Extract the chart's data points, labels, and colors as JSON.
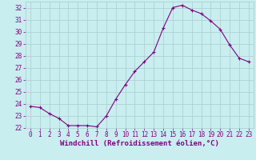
{
  "x": [
    0,
    1,
    2,
    3,
    4,
    5,
    6,
    7,
    8,
    9,
    10,
    11,
    12,
    13,
    14,
    15,
    16,
    17,
    18,
    19,
    20,
    21,
    22,
    23
  ],
  "y": [
    23.8,
    23.7,
    23.2,
    22.8,
    22.2,
    22.2,
    22.2,
    22.1,
    23.0,
    24.4,
    25.6,
    26.7,
    27.5,
    28.3,
    30.3,
    32.0,
    32.2,
    31.8,
    31.5,
    30.9,
    30.2,
    28.9,
    27.8,
    27.5
  ],
  "line_color": "#800080",
  "marker": "+",
  "bg_color": "#c8eef0",
  "grid_color": "#aacccc",
  "xlabel": "Windchill (Refroidissement éolien,°C)",
  "xlim": [
    -0.5,
    23.5
  ],
  "ylim": [
    22,
    32.5
  ],
  "yticks": [
    22,
    23,
    24,
    25,
    26,
    27,
    28,
    29,
    30,
    31,
    32
  ],
  "xticks": [
    0,
    1,
    2,
    3,
    4,
    5,
    6,
    7,
    8,
    9,
    10,
    11,
    12,
    13,
    14,
    15,
    16,
    17,
    18,
    19,
    20,
    21,
    22,
    23
  ],
  "tick_color": "#800080",
  "label_fontsize": 5.5,
  "xlabel_fontsize": 6.5,
  "marker_size": 3,
  "line_width": 0.8
}
